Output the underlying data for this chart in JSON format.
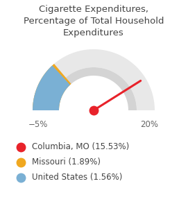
{
  "title": "Cigarette Expenditures,\nPercentage of Total Household\nExpenditures",
  "min_val": -5,
  "max_val": 20,
  "columbia_val": 15.53,
  "missouri_val": 1.89,
  "us_val": 1.56,
  "columbia_color": "#e8222a",
  "missouri_color": "#f0a820",
  "us_color": "#7ab0d4",
  "background_arc_color_outer": "#e8e8e8",
  "background_arc_color_inner": "#d4d4d4",
  "legend_labels": [
    "Columbia, MO (15.53%)",
    "Missouri (1.89%)",
    "United States (1.56%)"
  ],
  "legend_colors": [
    "#e8222a",
    "#f0a820",
    "#7ab0d4"
  ],
  "label_min": "−5%",
  "label_max": "20%",
  "title_fontsize": 9.5,
  "legend_fontsize": 8.5
}
